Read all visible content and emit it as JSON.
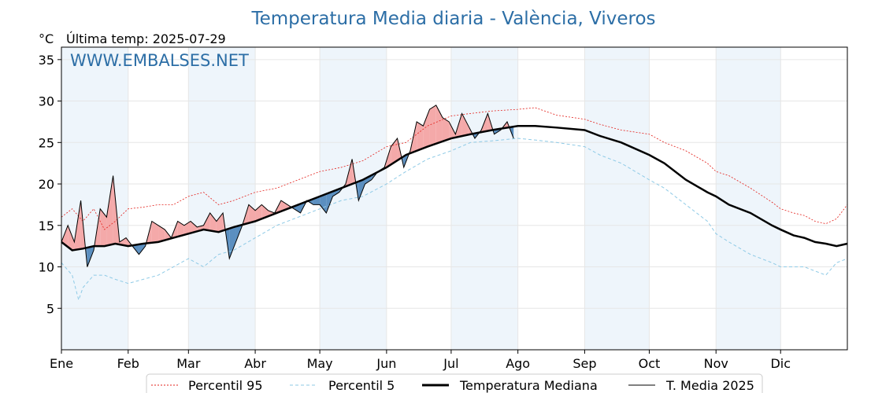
{
  "chart_data": {
    "type": "line",
    "title": "Temperatura Media diaria - València, Viveros",
    "unit_label": "°C",
    "subtitle": "Última temp: 2025-07-29",
    "watermark": "WWW.EMBALSES.NET",
    "x_ticks": [
      "Ene",
      "Feb",
      "Mar",
      "Abr",
      "May",
      "Jun",
      "Jul",
      "Ago",
      "Sep",
      "Oct",
      "Nov",
      "Dic"
    ],
    "y_ticks": [
      5,
      10,
      15,
      20,
      25,
      30,
      35
    ],
    "ylim": [
      0,
      36.5
    ],
    "x_range_days": [
      0,
      365
    ],
    "grid": true,
    "legend_placement": "bottom",
    "colors": {
      "p95": "#e3201b",
      "p5": "#8ecae6",
      "median": "#000000",
      "current": "#000000",
      "above_fill": "#f4a9a9",
      "below_fill": "#5b8fc0",
      "shade": "#eef5fb",
      "title": "#2c6ea6"
    },
    "series": [
      {
        "name": "Percentil 95",
        "key": "p95",
        "x": [
          0,
          5,
          10,
          15,
          20,
          25,
          31,
          38,
          45,
          52,
          59,
          66,
          73,
          80,
          90,
          100,
          110,
          120,
          130,
          140,
          151,
          160,
          170,
          181,
          190,
          200,
          212,
          220,
          230,
          243,
          250,
          260,
          273,
          280,
          290,
          300,
          304,
          310,
          320,
          330,
          334,
          340,
          345,
          350,
          355,
          360,
          365
        ],
        "y": [
          16.0,
          17.0,
          15.5,
          17.0,
          14.5,
          15.5,
          17.0,
          17.2,
          17.5,
          17.5,
          18.5,
          19.0,
          17.5,
          18.0,
          19.0,
          19.5,
          20.5,
          21.5,
          22.0,
          22.8,
          24.5,
          25.0,
          27.0,
          28.2,
          28.5,
          28.8,
          29.0,
          29.2,
          28.3,
          27.8,
          27.2,
          26.5,
          26.0,
          25.0,
          24.0,
          22.5,
          21.5,
          21.0,
          19.5,
          17.8,
          17.0,
          16.5,
          16.2,
          15.5,
          15.2,
          15.8,
          17.5
        ]
      },
      {
        "name": "Percentil 5",
        "key": "p5",
        "x": [
          0,
          5,
          8,
          10,
          15,
          20,
          25,
          31,
          38,
          45,
          52,
          59,
          66,
          73,
          80,
          90,
          100,
          110,
          120,
          130,
          140,
          151,
          160,
          170,
          181,
          190,
          200,
          212,
          220,
          230,
          243,
          250,
          260,
          273,
          280,
          290,
          300,
          304,
          310,
          320,
          330,
          334,
          340,
          345,
          350,
          355,
          360,
          365
        ],
        "y": [
          10.5,
          9.0,
          6.0,
          7.5,
          9.0,
          9.0,
          8.5,
          8.0,
          8.5,
          9.0,
          10.0,
          11.0,
          10.0,
          11.5,
          12.0,
          13.5,
          15.0,
          16.0,
          17.0,
          18.0,
          18.5,
          20.0,
          21.5,
          23.0,
          24.0,
          25.0,
          25.2,
          25.5,
          25.3,
          25.0,
          24.5,
          23.5,
          22.5,
          20.5,
          19.5,
          17.5,
          15.5,
          14.0,
          13.0,
          11.5,
          10.5,
          10.0,
          10.0,
          10.0,
          9.5,
          9.0,
          10.5,
          11.0
        ]
      },
      {
        "name": "Temperatura Mediana",
        "key": "median",
        "x": [
          0,
          5,
          10,
          15,
          20,
          25,
          31,
          38,
          45,
          52,
          59,
          66,
          73,
          80,
          90,
          100,
          110,
          120,
          130,
          140,
          151,
          160,
          170,
          181,
          190,
          200,
          212,
          220,
          230,
          243,
          250,
          260,
          273,
          280,
          290,
          300,
          304,
          310,
          320,
          330,
          334,
          340,
          345,
          350,
          355,
          360,
          365
        ],
        "y": [
          13.0,
          12.0,
          12.2,
          12.5,
          12.5,
          12.8,
          12.5,
          12.8,
          13.0,
          13.5,
          14.0,
          14.5,
          14.2,
          14.8,
          15.5,
          16.5,
          17.5,
          18.5,
          19.5,
          20.5,
          22.0,
          23.5,
          24.5,
          25.5,
          26.0,
          26.5,
          27.0,
          27.0,
          26.8,
          26.5,
          25.8,
          25.0,
          23.5,
          22.5,
          20.5,
          19.0,
          18.5,
          17.5,
          16.5,
          15.0,
          14.5,
          13.8,
          13.5,
          13.0,
          12.8,
          12.5,
          12.8
        ]
      },
      {
        "name": "T. Media 2025",
        "key": "current",
        "x": [
          0,
          3,
          6,
          9,
          12,
          15,
          18,
          21,
          24,
          27,
          30,
          33,
          36,
          39,
          42,
          45,
          48,
          51,
          54,
          57,
          60,
          63,
          66,
          69,
          72,
          75,
          78,
          81,
          84,
          87,
          90,
          93,
          96,
          99,
          102,
          105,
          108,
          111,
          114,
          117,
          120,
          123,
          126,
          129,
          132,
          135,
          138,
          141,
          144,
          147,
          150,
          153,
          156,
          159,
          162,
          165,
          168,
          171,
          174,
          177,
          180,
          183,
          186,
          189,
          192,
          195,
          198,
          201,
          204,
          207,
          210
        ],
        "y": [
          13.0,
          15.0,
          13.0,
          18.0,
          10.0,
          12.0,
          17.0,
          16.0,
          21.0,
          13.0,
          13.5,
          12.5,
          11.5,
          12.5,
          15.5,
          15.0,
          14.5,
          13.5,
          15.5,
          15.0,
          15.5,
          14.8,
          15.0,
          16.5,
          15.5,
          16.5,
          11.0,
          13.0,
          15.0,
          17.5,
          16.8,
          17.5,
          16.8,
          16.5,
          18.0,
          17.5,
          17.0,
          16.5,
          18.0,
          17.5,
          17.5,
          16.5,
          18.5,
          19.0,
          20.0,
          23.0,
          18.0,
          20.0,
          20.5,
          21.5,
          22.0,
          24.5,
          25.5,
          22.0,
          24.0,
          27.5,
          27.0,
          29.0,
          29.5,
          28.0,
          27.5,
          26.0,
          28.5,
          27.0,
          25.5,
          26.5,
          28.5,
          26.0,
          26.5,
          27.5,
          25.5
        ]
      }
    ],
    "legend": [
      "Percentil 95",
      "Percentil 5",
      "Temperatura Mediana",
      "T. Media 2025"
    ]
  }
}
